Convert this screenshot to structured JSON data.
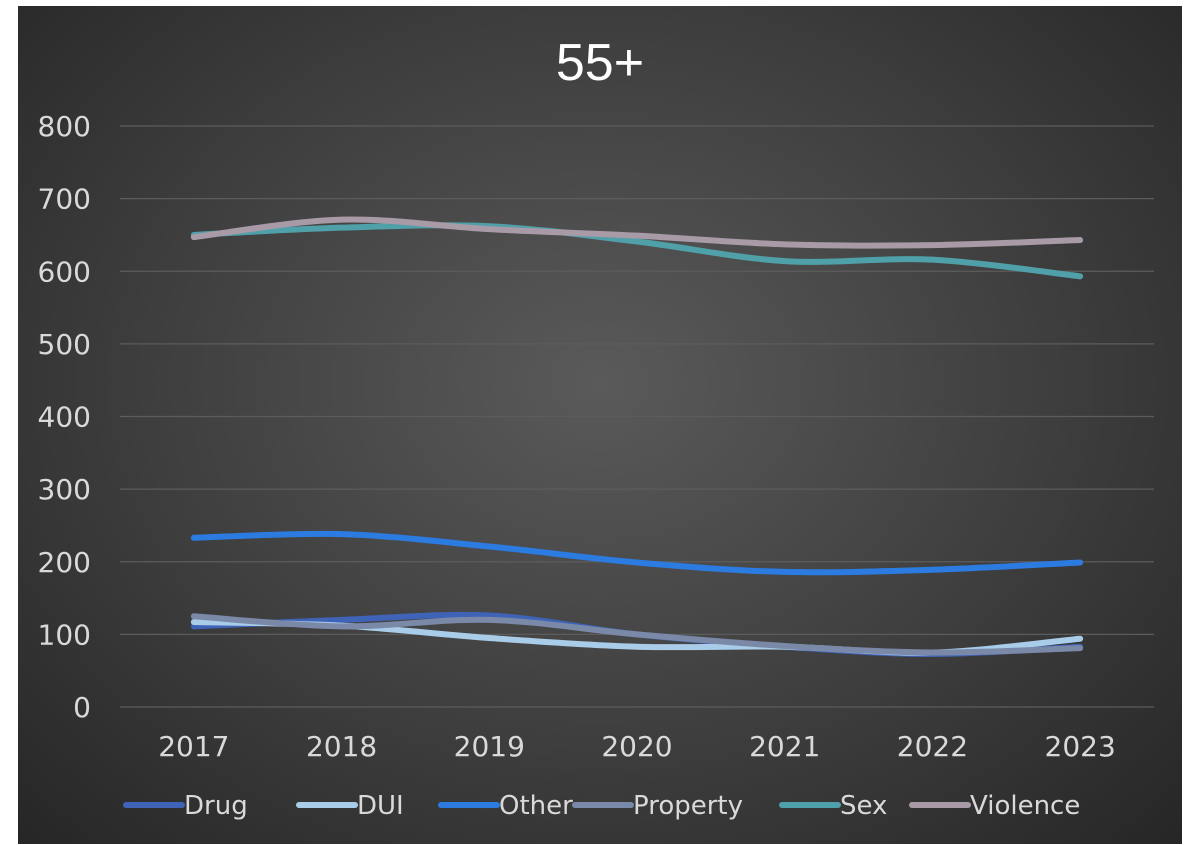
{
  "chart_data": {
    "type": "line",
    "title": "55+",
    "categories": [
      "2017",
      "2018",
      "2019",
      "2020",
      "2021",
      "2022",
      "2023"
    ],
    "ylim": [
      0,
      800
    ],
    "yticks": [
      0,
      100,
      200,
      300,
      400,
      500,
      600,
      700,
      800
    ],
    "grid": true,
    "legend_position": "bottom",
    "series": [
      {
        "name": "Drug",
        "color": "#3f63b6",
        "values": [
          111,
          120,
          126,
          100,
          83,
          73,
          83
        ]
      },
      {
        "name": "DUI",
        "color": "#a9cde9",
        "values": [
          117,
          112,
          95,
          83,
          83,
          75,
          94
        ]
      },
      {
        "name": "Other",
        "color": "#2b7be0",
        "values": [
          233,
          238,
          221,
          199,
          186,
          189,
          199
        ]
      },
      {
        "name": "Property",
        "color": "#7b89a8",
        "values": [
          125,
          111,
          120,
          100,
          84,
          75,
          81
        ]
      },
      {
        "name": "Sex",
        "color": "#4fa0a8",
        "values": [
          650,
          660,
          662,
          641,
          614,
          616,
          593
        ]
      },
      {
        "name": "Violence",
        "color": "#a99aa8",
        "values": [
          647,
          671,
          658,
          649,
          637,
          636,
          643
        ]
      }
    ]
  }
}
